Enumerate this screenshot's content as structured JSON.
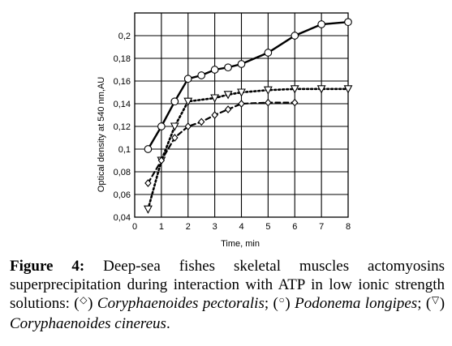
{
  "chart_data": {
    "type": "line",
    "xlabel": "Time, min",
    "ylabel": "Optical density at 540 nm,AU",
    "xlim": [
      0,
      8
    ],
    "ylim": [
      0.04,
      0.22
    ],
    "x_ticks": [
      "0",
      "1",
      "2",
      "3",
      "4",
      "5",
      "6",
      "7",
      "8"
    ],
    "y_ticks": [
      "0,04",
      "0,06",
      "0,08",
      "0,1",
      "0,12",
      "0,14",
      "0,16",
      "0,18",
      "0,2"
    ],
    "grid": true,
    "series": [
      {
        "marker": "circle",
        "line": "solid",
        "x": [
          0.5,
          1,
          1.5,
          2,
          2.5,
          3,
          3.5,
          4,
          5,
          6,
          7,
          8
        ],
        "y": [
          0.1,
          0.12,
          0.142,
          0.162,
          0.165,
          0.17,
          0.172,
          0.175,
          0.185,
          0.2,
          0.21,
          0.212
        ]
      },
      {
        "marker": "triangle-down",
        "line": "dotted",
        "x": [
          0.5,
          1,
          1.5,
          2,
          3,
          3.5,
          4,
          5,
          6,
          7,
          8
        ],
        "y": [
          0.047,
          0.09,
          0.12,
          0.142,
          0.145,
          0.148,
          0.15,
          0.152,
          0.153,
          0.153,
          0.153
        ]
      },
      {
        "marker": "diamond",
        "line": "dashed",
        "x": [
          0.5,
          1,
          1.5,
          2,
          2.5,
          3,
          3.5,
          4,
          5,
          6
        ],
        "y": [
          0.07,
          0.09,
          0.11,
          0.12,
          0.124,
          0.13,
          0.135,
          0.14,
          0.141,
          0.141
        ]
      }
    ]
  },
  "caption": {
    "label": "Figure 4:",
    "text_1": " Deep-sea fishes skeletal muscles actomyosins superprecipitation during interaction with ATP in low ionic strength solutions: (",
    "glyph_1": "◇",
    "text_2": ") ",
    "species_1": "Coryphaenoides pectoralis",
    "text_3": "; (",
    "glyph_2": "○",
    "text_4": ") ",
    "species_2": "Podonema longipes",
    "text_5": "; (",
    "glyph_3": "▽",
    "text_6": ") ",
    "species_3": "Coryphaenoides cinereus",
    "text_7": "."
  }
}
